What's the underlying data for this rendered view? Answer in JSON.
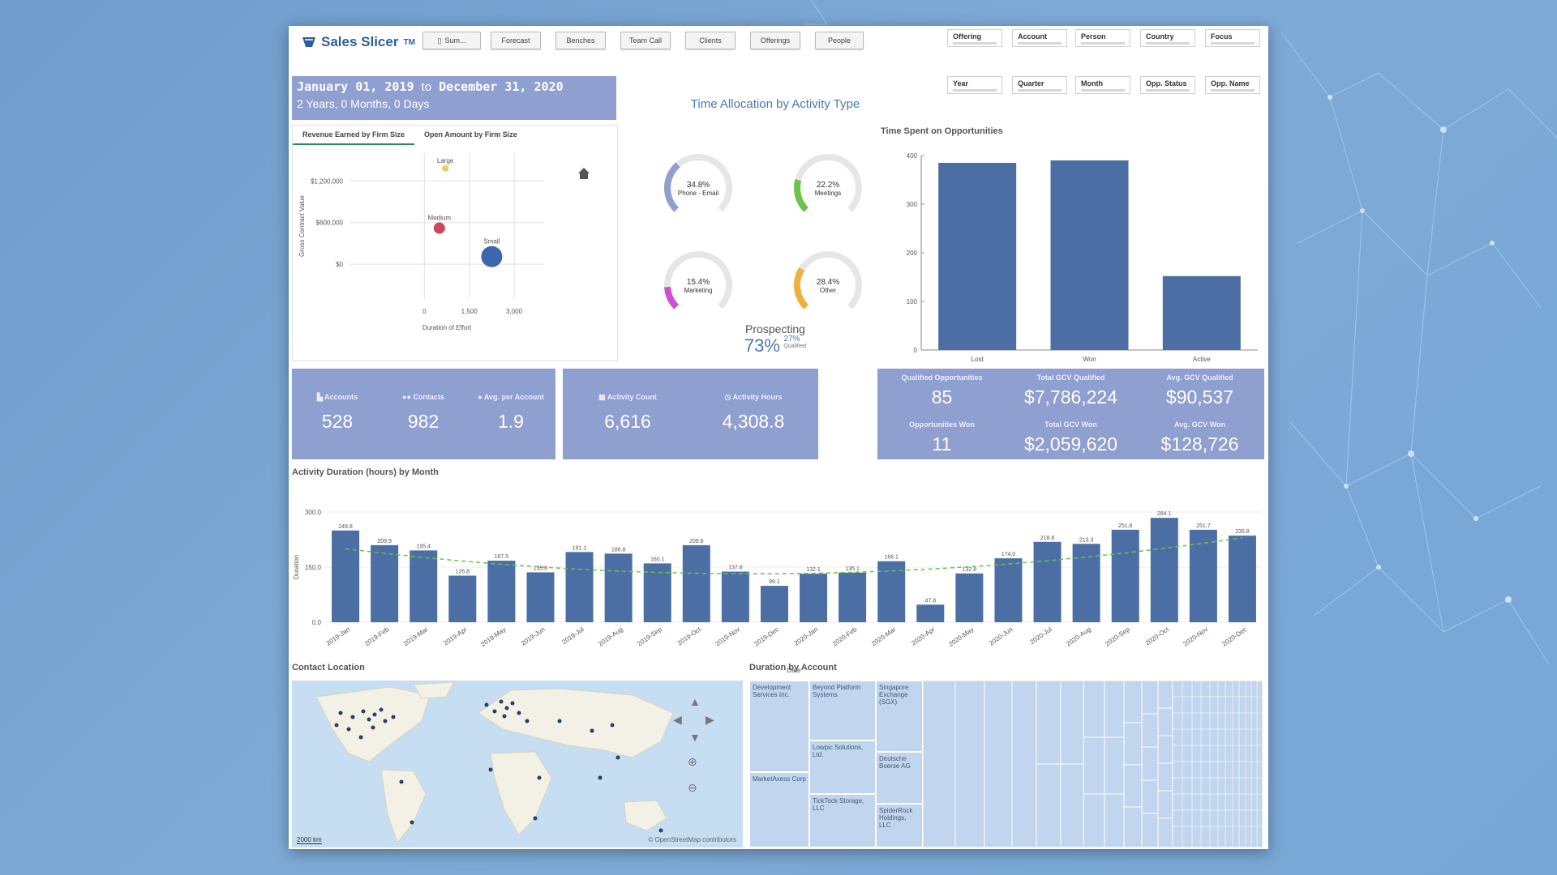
{
  "app": {
    "name": "Sales Slicer",
    "trademark": "TM"
  },
  "toolbar": {
    "buttons": [
      "Sum...",
      "Forecast",
      "Benches",
      "Team Call",
      "Clients",
      "Offerings",
      "People"
    ]
  },
  "filters": {
    "row1": [
      "Offering",
      "Account",
      "Person",
      "Country",
      "Focus"
    ],
    "row2": [
      "Year",
      "Quarter",
      "Month",
      "Opp. Status",
      "Opp. Name"
    ]
  },
  "date_range": {
    "start": "January 01, 2019",
    "to": "to",
    "end": "December 31, 2020",
    "duration": "2 Years, 0 Months, 0 Days"
  },
  "firm_size": {
    "tabs": [
      "Revenue Earned by Firm Size",
      "Open Amount by Firm Size"
    ],
    "chart_data": {
      "type": "scatter",
      "xlabel": "Duration of Effort",
      "ylabel": "Gross Contract Value",
      "x_ticks": [
        "0",
        "1,500",
        "3,000"
      ],
      "y_ticks": [
        "$1,200,000",
        "$600,000",
        "$0"
      ],
      "xlim": [
        -2500,
        4000
      ],
      "ylim": [
        -500000,
        1600000
      ],
      "points": [
        {
          "label": "Large",
          "x": 700,
          "y": 1380000,
          "color": "#e4cf67",
          "size": 4
        },
        {
          "label": "Medium",
          "x": 500,
          "y": 520000,
          "color": "#c9485b",
          "size": 7
        },
        {
          "label": "Small",
          "x": 2250,
          "y": 110000,
          "color": "#3b68ad",
          "size": 13
        }
      ]
    }
  },
  "time_allocation": {
    "title": "Time Allocation by Activity Type",
    "gauges": [
      {
        "pct": "34.8%",
        "label": "Phone - Email",
        "value": 34.8,
        "color": "#8e9fd0"
      },
      {
        "pct": "22.2%",
        "label": "Meetings",
        "value": 22.2,
        "color": "#6cc24a"
      },
      {
        "pct": "15.4%",
        "label": "Marketing",
        "value": 15.4,
        "color": "#d04ed4"
      },
      {
        "pct": "28.4%",
        "label": "Other",
        "value": 28.4,
        "color": "#f0b040"
      }
    ],
    "prospecting": {
      "label": "Prospecting",
      "main": "73%",
      "side_pct": "27%",
      "side_label": "Qualified"
    }
  },
  "opportunities": {
    "title": "Time Spent on Opportunities",
    "chart_data": {
      "type": "bar",
      "categories": [
        "Lost",
        "Won",
        "Active"
      ],
      "values": [
        385,
        390,
        152
      ],
      "ylim": [
        0,
        400
      ],
      "y_ticks": [
        "400",
        "300",
        "200",
        "100",
        "0"
      ]
    }
  },
  "kpis": {
    "accounts": {
      "label": "Accounts",
      "value": "528"
    },
    "contacts": {
      "label": "Contacts",
      "value": "982"
    },
    "avg_per_account": {
      "label": "Avg. per Account",
      "value": "1.9"
    },
    "activity_count": {
      "label": "Activity Count",
      "value": "6,616"
    },
    "activity_hours": {
      "label": "Activity Hours",
      "value": "4,308.8"
    },
    "qualified_opps": {
      "label": "Qualified Opportunities",
      "value": "85"
    },
    "total_gcv_qualified": {
      "label": "Total GCV Qualified",
      "value": "$7,786,224"
    },
    "avg_gcv_qualified": {
      "label": "Avg. GCV Qualified",
      "value": "$90,537"
    },
    "opps_won": {
      "label": "Opportunities Won",
      "value": "11"
    },
    "total_gcv_won": {
      "label": "Total GCV Won",
      "value": "$2,059,620"
    },
    "avg_gcv_won": {
      "label": "Avg. GCV Won",
      "value": "$128,726"
    }
  },
  "monthly": {
    "title": "Activity Duration (hours) by Month",
    "chart_data": {
      "type": "bar",
      "xlabel": "Date",
      "ylabel": "Duration",
      "y_ticks": [
        "300.0",
        "150.0",
        "0.0"
      ],
      "ylim": [
        0,
        300
      ],
      "categories": [
        "2019-Jan",
        "2019-Feb",
        "2019-Mar",
        "2019-Apr",
        "2019-May",
        "2019-Jun",
        "2019-Jul",
        "2019-Aug",
        "2019-Sep",
        "2019-Oct",
        "2019-Nov",
        "2019-Dec",
        "2020-Jan",
        "2020-Feb",
        "2020-Mar",
        "2020-Apr",
        "2020-May",
        "2020-Jun",
        "2020-Jul",
        "2020-Aug",
        "2020-Sep",
        "2020-Oct",
        "2020-Nov",
        "2020-Dec"
      ],
      "labels": [
        "249.8",
        "209.9",
        "195.4",
        "126.8",
        "167.5",
        "135.8",
        "191.1",
        "186.8",
        "160.1",
        "209.8",
        "137.8",
        "99.1",
        "132.1",
        "135.1",
        "166.1",
        "47.8",
        "132.8",
        "174.0",
        "218.8",
        "213.3",
        "251.8",
        "284.1",
        "251.7",
        "235.8"
      ],
      "values": [
        249.8,
        209.9,
        195.4,
        126.8,
        167.5,
        135.8,
        191.1,
        186.8,
        160.1,
        209.8,
        137.8,
        99.1,
        132.1,
        135.1,
        166.1,
        47.8,
        132.8,
        174.0,
        218.8,
        213.3,
        251.8,
        284.1,
        251.7,
        235.8
      ]
    }
  },
  "map": {
    "title": "Contact Location",
    "scale": "2000 km",
    "attribution": "© OpenStreetMap contributors"
  },
  "treemap": {
    "title": "Duration by Account",
    "labels": [
      "Development Services Inc.",
      "Beyond Platform Systems",
      "Singapore Exchange (SGX)",
      "Lowpic Solutions, Ltd.",
      "Deutsche Boerse AG",
      "MarketAxess Corp",
      "TickTock Storage, LLC",
      "SpiderRock Holdings, LLC"
    ]
  }
}
